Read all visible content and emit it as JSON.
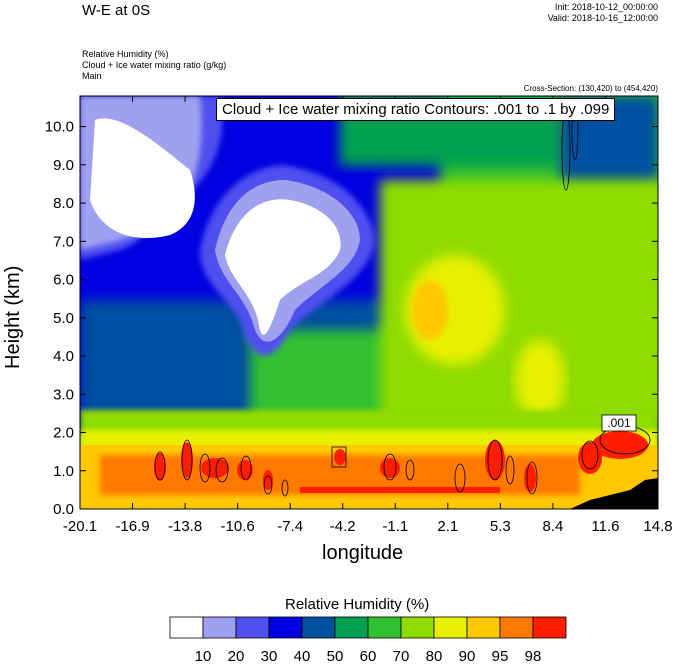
{
  "header": {
    "main_title": "W-E at 0S",
    "init": "Init: 2018-10-12_00:00:00",
    "valid": "Valid: 2018-10-16_12:00:00",
    "sub1": "Relative Humidity   (%)",
    "sub2": "Cloud + Ice water mixing ratio   (g/kg)",
    "sub3": "Main",
    "cross_section": "Cross-Section: (130,420) to (454,420)",
    "contour_info": "Cloud + Ice water mixing ratio Contours: .001 to .1 by .099"
  },
  "chart_data": {
    "type": "heatmap",
    "xlabel": "longitude",
    "ylabel": "Height (km)",
    "xlim": [
      -20.1,
      14.8
    ],
    "ylim": [
      0,
      10.8
    ],
    "x_ticks": [
      "-20.1",
      "-16.9",
      "-13.8",
      "-10.6",
      "-7.4",
      "-4.2",
      "-1.1",
      "2.1",
      "5.3",
      "8.4",
      "11.6",
      "14.8"
    ],
    "y_ticks": [
      "0.0",
      "1.0",
      "2.0",
      "3.0",
      "4.0",
      "5.0",
      "6.0",
      "7.0",
      "8.0",
      "9.0",
      "10.0"
    ],
    "colorbar": {
      "title": "Relative Humidity  (%)",
      "levels": [
        "10",
        "20",
        "30",
        "40",
        "50",
        "60",
        "70",
        "80",
        "90",
        "95",
        "98"
      ],
      "colors": [
        "#ffffff",
        "#a0a0f0",
        "#5050f0",
        "#0000e0",
        "#0050a0",
        "#00a050",
        "#30c030",
        "#90dc00",
        "#e6f000",
        "#ffc800",
        "#ff7800",
        "#ff1e00"
      ]
    },
    "contour_label": ".001",
    "terrain_color": "#000000"
  }
}
